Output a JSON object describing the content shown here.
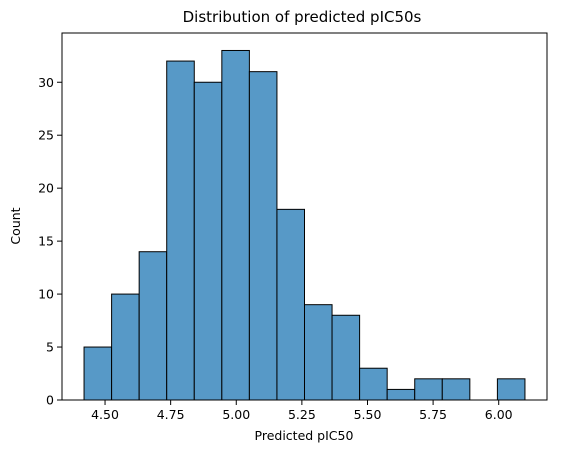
{
  "chart_data": {
    "type": "bar",
    "title": "Distribution of predicted pIC50s",
    "xlabel": "Predicted pIC50",
    "ylabel": "Count",
    "bin_edges": [
      4.42,
      4.525,
      4.63,
      4.735,
      4.84,
      4.945,
      5.05,
      5.155,
      5.26,
      5.365,
      5.47,
      5.575,
      5.68,
      5.785,
      5.89,
      5.995,
      6.1
    ],
    "values": [
      5,
      10,
      14,
      32,
      30,
      33,
      31,
      18,
      9,
      8,
      3,
      1,
      2,
      2,
      0,
      2
    ],
    "xlim": [
      4.336,
      6.184
    ],
    "ylim": [
      0,
      34.65
    ],
    "x_ticks": [
      4.5,
      4.75,
      5.0,
      5.25,
      5.5,
      5.75,
      6.0
    ],
    "x_tick_labels": [
      "4.50",
      "4.75",
      "5.00",
      "5.25",
      "5.50",
      "5.75",
      "6.00"
    ],
    "y_ticks": [
      0,
      5,
      10,
      15,
      20,
      25,
      30
    ],
    "y_tick_labels": [
      "0",
      "5",
      "10",
      "15",
      "20",
      "25",
      "30"
    ],
    "bar_color": "#5799c7",
    "edge_color": "#000000",
    "grid": false,
    "legend": "none"
  }
}
